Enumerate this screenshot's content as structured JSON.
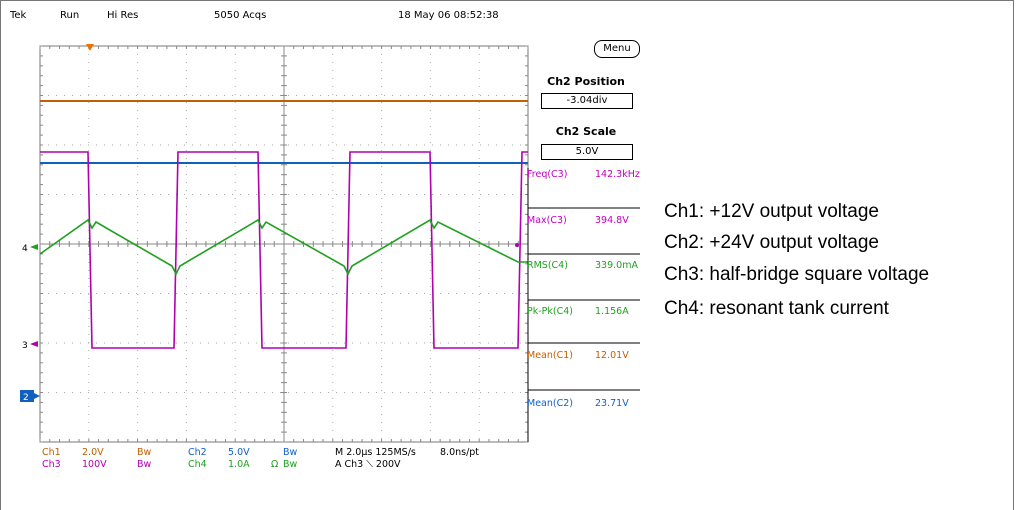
{
  "scope": {
    "top_bar": {
      "brand": "Tek",
      "run_state": "Run",
      "acq_mode": "Hi Res",
      "acq_count": "5050 Acqs",
      "datetime": "18 May 06 08:52:38"
    },
    "menu_label": "Menu",
    "ch2_position": {
      "title": "Ch2 Position",
      "value": "-3.04div"
    },
    "ch2_scale": {
      "title": "Ch2 Scale",
      "value": "5.0V"
    },
    "measurements": [
      {
        "label": "Freq(C3)",
        "value": "142.3kHz",
        "color": "#c000c0"
      },
      {
        "label": "Max(C3)",
        "value": "394.8V",
        "color": "#c000c0"
      },
      {
        "label": "RMS(C4)",
        "value": "339.0mA",
        "color": "#20a020"
      },
      {
        "label": "Pk-Pk(C4)",
        "value": "1.156A",
        "color": "#20a020"
      },
      {
        "label": "Mean(C1)",
        "value": "12.01V",
        "color": "#c06000"
      },
      {
        "label": "Mean(C2)",
        "value": "23.71V",
        "color": "#1060c0"
      }
    ],
    "markers": {
      "ch4": "4",
      "ch3": "3",
      "ch2": "2"
    },
    "bottom": {
      "ch1_name": "Ch1",
      "ch1_scale": "2.0V",
      "ch1_bw": "Bw",
      "ch3_name": "Ch3",
      "ch3_scale": "100V",
      "ch3_bw": "Bw",
      "ch2_name": "Ch2",
      "ch2_scale": "5.0V",
      "ch2_bw": "Bw",
      "ch4_name": "Ch4",
      "ch4_scale": "1.0A",
      "ch4_ohm": "Ω",
      "ch4_bw": "Bw",
      "timebase": "M 2.0µs 125MS/s",
      "trigger": "A  Ch3  ⟍  200V",
      "resolution": "8.0ns/pt"
    },
    "colors": {
      "ch1": "#c06000",
      "ch2": "#1060c0",
      "ch3": "#b000b0",
      "ch4": "#20a020",
      "grid": "#555555"
    }
  },
  "legend": [
    "Ch1: +12V output voltage",
    "Ch2: +24V output voltage",
    "Ch3: half-bridge square voltage",
    "Ch4: resonant tank current"
  ]
}
